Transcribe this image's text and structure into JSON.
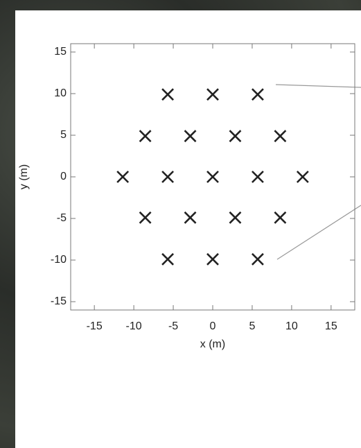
{
  "chart_data": {
    "type": "scatter",
    "color": "#222222",
    "marker": "x",
    "x_label": "x (m)",
    "y_label": "y (m)",
    "x": [
      -5.7,
      0,
      5.7,
      -8.55,
      -2.85,
      2.85,
      8.55,
      -11.4,
      -5.7,
      0,
      5.7,
      11.4,
      -8.55,
      -2.85,
      2.85,
      8.55,
      -5.7,
      0,
      5.7
    ],
    "values": [
      9.9,
      9.9,
      9.9,
      4.9,
      4.9,
      4.9,
      4.9,
      0,
      0,
      0,
      0,
      0,
      -4.9,
      -4.9,
      -4.9,
      -4.9,
      -9.9,
      -9.9,
      -9.9
    ],
    "xlim": [
      -18,
      18
    ],
    "ylim": [
      -16,
      16
    ],
    "xticks": [
      -15,
      -10,
      -5,
      0,
      5,
      10,
      15
    ],
    "yticks": [
      -15,
      -10,
      -5,
      0,
      5,
      10,
      15
    ]
  }
}
